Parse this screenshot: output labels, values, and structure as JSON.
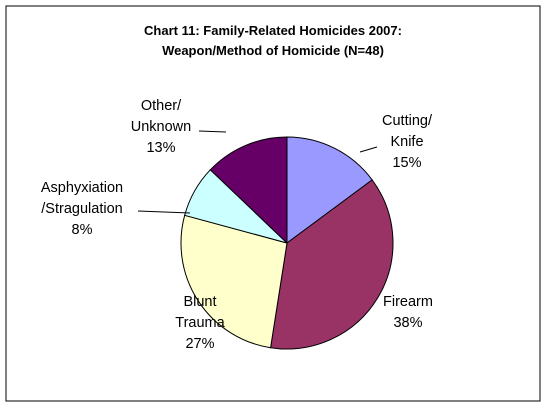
{
  "chart_data": {
    "type": "pie",
    "title_lines": [
      "Chart 11:  Family-Related Homicides 2007:",
      "Weapon/Method of Homicide (N=48)"
    ],
    "slices": [
      {
        "label_lines": [
          "Cutting/",
          "Knife"
        ],
        "percent_label": "15%",
        "value": 15,
        "color": "#9999FF"
      },
      {
        "label_lines": [
          "Firearm"
        ],
        "percent_label": "38%",
        "value": 38,
        "color": "#993366"
      },
      {
        "label_lines": [
          "Blunt",
          "Trauma"
        ],
        "percent_label": "27%",
        "value": 27,
        "color": "#FFFFCC"
      },
      {
        "label_lines": [
          "Asphyxiation",
          "/Stragulation"
        ],
        "percent_label": "8%",
        "value": 8,
        "color": "#CCFFFF"
      },
      {
        "label_lines": [
          "Other/",
          "Unknown"
        ],
        "percent_label": "13%",
        "value": 13,
        "color": "#660066"
      }
    ],
    "legend": "none"
  }
}
